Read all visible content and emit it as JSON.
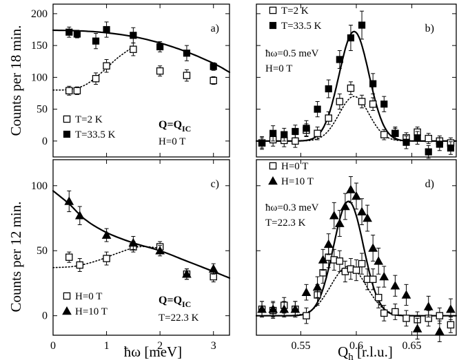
{
  "figure": {
    "ylabel_top": "Counts per 18 min.",
    "ylabel_bottom": "Counts per 12 min.",
    "xlabel_left": "ħω [meV]",
    "xlabel_right_main": "Q",
    "xlabel_right_sub": "h",
    "xlabel_right_unit": " [r.l.u.]"
  },
  "chart_data": [
    {
      "id": "a",
      "type": "scatter",
      "panel_letter": "a)",
      "xlim": [
        0,
        3.3
      ],
      "ylim": [
        -25,
        215
      ],
      "yticks": [
        0,
        50,
        100,
        150,
        200
      ],
      "xticks": [],
      "grid": false,
      "legend_position": "bottom-left",
      "series": [
        {
          "name": "T=2 K",
          "marker": "open-square",
          "x": [
            0.3,
            0.45,
            0.8,
            1.0,
            1.5,
            2.0,
            2.5,
            3.0
          ],
          "y": [
            79,
            79,
            98,
            118,
            144,
            110,
            103,
            95
          ],
          "err": [
            7,
            6,
            9,
            10,
            10,
            8,
            9,
            6
          ]
        },
        {
          "name": "T=33.5 K",
          "marker": "filled-square",
          "x": [
            0.3,
            0.45,
            0.8,
            1.0,
            1.5,
            2.0,
            2.5,
            3.0
          ],
          "y": [
            171,
            168,
            157,
            175,
            166,
            148,
            138,
            117
          ],
          "err": [
            8,
            6,
            12,
            12,
            12,
            8,
            12,
            6
          ]
        }
      ],
      "curves": [
        {
          "style": "solid",
          "x": [
            0,
            0.5,
            1.0,
            1.5,
            2.0,
            2.5,
            3.0,
            3.3
          ],
          "y": [
            174,
            173,
            170,
            164,
            154,
            140,
            122,
            108
          ]
        },
        {
          "style": "dotted",
          "x": [
            0,
            0.3,
            0.6,
            0.9,
            1.2,
            1.5
          ],
          "y": [
            80,
            81,
            88,
            107,
            130,
            148
          ]
        }
      ],
      "annotations": [
        {
          "text": "Q=Q",
          "sub": "IC",
          "bold": true
        },
        {
          "text": "H=0 T"
        }
      ]
    },
    {
      "id": "b",
      "type": "scatter",
      "panel_letter": "b)",
      "xlim": [
        0.51,
        0.69
      ],
      "ylim": [
        -25,
        215
      ],
      "xticks": [],
      "yticks": [],
      "grid": false,
      "legend_position": "top-left",
      "series": [
        {
          "name": "T=2 K",
          "marker": "open-square",
          "x": [
            0.515,
            0.525,
            0.535,
            0.545,
            0.555,
            0.565,
            0.575,
            0.585,
            0.595,
            0.605,
            0.615,
            0.625,
            0.635,
            0.645,
            0.655,
            0.665,
            0.675,
            0.685
          ],
          "y": [
            -3,
            2,
            1,
            0,
            17,
            12,
            36,
            62,
            83,
            62,
            58,
            10,
            12,
            5,
            14,
            4,
            0,
            -3
          ],
          "err": [
            8,
            10,
            10,
            10,
            10,
            10,
            10,
            12,
            10,
            10,
            10,
            8,
            8,
            8,
            8,
            8,
            8,
            8
          ]
        },
        {
          "name": "T=33.5 K",
          "marker": "filled-square",
          "x": [
            0.515,
            0.525,
            0.535,
            0.545,
            0.555,
            0.565,
            0.575,
            0.585,
            0.595,
            0.605,
            0.615,
            0.625,
            0.635,
            0.645,
            0.655,
            0.665,
            0.675,
            0.685
          ],
          "y": [
            -3,
            12,
            10,
            15,
            20,
            50,
            82,
            128,
            162,
            182,
            90,
            58,
            12,
            -2,
            5,
            -17,
            -5,
            -11
          ],
          "err": [
            10,
            12,
            10,
            10,
            12,
            12,
            14,
            14,
            20,
            22,
            16,
            12,
            10,
            10,
            10,
            10,
            10,
            10
          ]
        }
      ],
      "curves": [
        {
          "style": "solid",
          "center": 0.598,
          "sigma": 0.0135,
          "amp": 172,
          "base": 0
        },
        {
          "style": "dotted",
          "center": 0.598,
          "sigma": 0.0135,
          "amp": 70,
          "base": 0
        }
      ],
      "annotations": [
        {
          "text": "ħω=0.5 meV"
        },
        {
          "text": "H=0 T"
        }
      ]
    },
    {
      "id": "c",
      "type": "scatter",
      "panel_letter": "c)",
      "xlim": [
        0,
        3.3
      ],
      "ylim": [
        -15,
        120
      ],
      "xticks": [
        0,
        1,
        2,
        3
      ],
      "yticks": [
        0,
        50,
        100
      ],
      "grid": false,
      "legend_position": "bottom-left",
      "series": [
        {
          "name": "H=0 T",
          "marker": "open-square",
          "x": [
            0.3,
            0.5,
            1.0,
            1.5,
            2.0,
            2.5,
            3.0
          ],
          "y": [
            45,
            39,
            44,
            53,
            53,
            32,
            30
          ],
          "err": [
            4,
            5,
            5,
            4,
            4,
            4,
            4
          ]
        },
        {
          "name": "H=10 T",
          "marker": "filled-triangle",
          "x": [
            0.3,
            0.5,
            1.0,
            1.5,
            2.0,
            2.5,
            3.0
          ],
          "y": [
            88,
            77,
            62,
            56,
            50,
            32,
            36
          ],
          "err": [
            8,
            7,
            5,
            5,
            4,
            4,
            4
          ]
        }
      ],
      "curves": [
        {
          "style": "solid",
          "x": [
            0,
            0.3,
            0.6,
            1.0,
            1.5,
            2.0,
            2.5,
            3.0,
            3.3
          ],
          "y": [
            96,
            86,
            74,
            64,
            56,
            50,
            42,
            34,
            29
          ]
        },
        {
          "style": "dotted",
          "x": [
            0,
            0.4,
            0.8,
            1.2,
            1.6,
            2.0
          ],
          "y": [
            37,
            38,
            42,
            48,
            53,
            52
          ]
        }
      ],
      "annotations": [
        {
          "text": "Q=Q",
          "sub": "IC",
          "bold": true
        },
        {
          "text": "T=22.3 K"
        }
      ]
    },
    {
      "id": "d",
      "type": "scatter",
      "panel_letter": "d)",
      "xlim": [
        0.51,
        0.69
      ],
      "ylim": [
        -15,
        120
      ],
      "xticks": [
        0.55,
        0.6,
        0.65
      ],
      "yticks": [],
      "grid": false,
      "legend_position": "top-left",
      "series": [
        {
          "name": "H=0 T",
          "marker": "open-square",
          "x": [
            0.515,
            0.525,
            0.535,
            0.545,
            0.555,
            0.565,
            0.57,
            0.575,
            0.58,
            0.585,
            0.59,
            0.595,
            0.6,
            0.605,
            0.61,
            0.615,
            0.62,
            0.625,
            0.635,
            0.645,
            0.655,
            0.665,
            0.675,
            0.685
          ],
          "y": [
            5,
            4,
            8,
            5,
            0,
            16,
            33,
            45,
            43,
            42,
            34,
            36,
            35,
            40,
            28,
            28,
            14,
            2,
            3,
            -2,
            -3,
            -2,
            0,
            -7
          ],
          "err": [
            6,
            6,
            6,
            6,
            6,
            8,
            8,
            8,
            8,
            8,
            8,
            8,
            8,
            8,
            8,
            8,
            8,
            6,
            6,
            6,
            6,
            6,
            6,
            6
          ]
        },
        {
          "name": "H=10 T",
          "marker": "filled-triangle",
          "x": [
            0.515,
            0.525,
            0.535,
            0.545,
            0.555,
            0.565,
            0.57,
            0.575,
            0.58,
            0.585,
            0.59,
            0.595,
            0.6,
            0.605,
            0.61,
            0.615,
            0.62,
            0.625,
            0.635,
            0.645,
            0.655,
            0.665,
            0.675,
            0.685
          ],
          "y": [
            5,
            5,
            5,
            5,
            18,
            22,
            43,
            55,
            77,
            71,
            84,
            97,
            92,
            80,
            75,
            52,
            42,
            30,
            23,
            16,
            -10,
            7,
            -12,
            5
          ],
          "err": [
            6,
            6,
            6,
            6,
            6,
            8,
            8,
            8,
            10,
            10,
            10,
            10,
            10,
            10,
            10,
            10,
            10,
            8,
            8,
            8,
            8,
            8,
            8,
            8
          ]
        }
      ],
      "curves": [
        {
          "style": "solid",
          "center": 0.593,
          "sigma": 0.0135,
          "amp": 88,
          "base": 0
        },
        {
          "style": "dotted",
          "center": 0.593,
          "sigma": 0.016,
          "amp": 38,
          "base": 0
        }
      ],
      "annotations": [
        {
          "text": "ħω=0.3 meV"
        },
        {
          "text": "T=22.3 K"
        }
      ]
    }
  ]
}
